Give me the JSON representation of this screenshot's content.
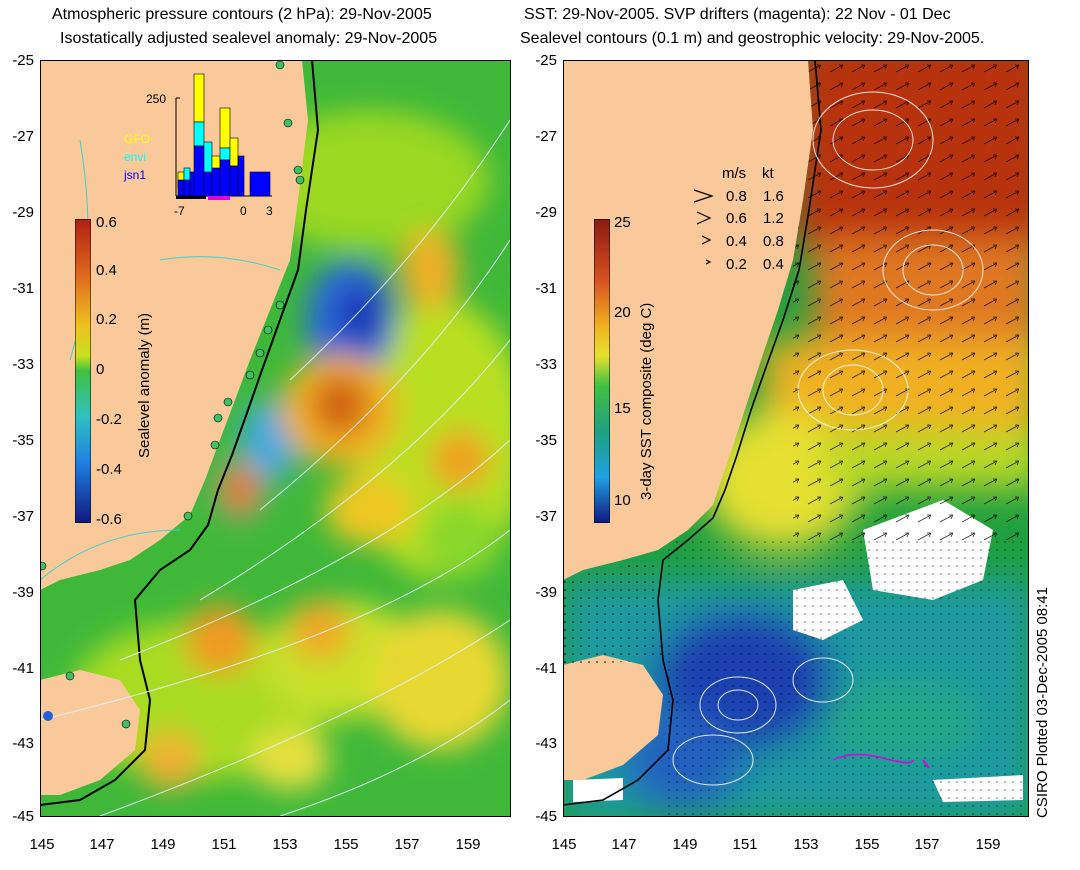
{
  "left_panel": {
    "title_line1": "Atmospheric pressure contours (2 hPa): 29-Nov-2005",
    "title_line2": "Isostatically adjusted sealevel anomaly: 29-Nov-2005",
    "colorbar": {
      "label": "Sealevel anomaly (m)",
      "ticks": [
        "0.6",
        "0.4",
        "0.2",
        "0",
        "-0.2",
        "-0.4",
        "-0.6"
      ]
    },
    "histogram": {
      "ymax_label": "250",
      "legend": [
        {
          "name": "GFO",
          "color": "#ffff00"
        },
        {
          "name": "envi",
          "color": "#00ffff"
        },
        {
          "name": "jsn1",
          "color": "#0000ff"
        }
      ],
      "x_ticks": [
        "-7",
        "0",
        "3"
      ]
    }
  },
  "right_panel": {
    "title_line1": "SST: 29-Nov-2005. SVP drifters (magenta): 22 Nov - 01 Dec",
    "title_line2": "Sealevel contours (0.1 m) and geostrophic velocity: 29-Nov-2005.",
    "colorbar": {
      "label": "3-day SST composite (deg C)",
      "ticks": [
        "25",
        "20",
        "15",
        "10"
      ]
    },
    "velocity_legend": {
      "header_ms": "m/s",
      "header_kt": "kt",
      "rows": [
        {
          "ms": "0.8",
          "kt": "1.6"
        },
        {
          "ms": "0.6",
          "kt": "1.2"
        },
        {
          "ms": "0.4",
          "kt": "0.8"
        },
        {
          "ms": "0.2",
          "kt": "0.4"
        }
      ]
    }
  },
  "axes": {
    "lat_ticks": [
      "-25",
      "-27",
      "-29",
      "-31",
      "-33",
      "-35",
      "-37",
      "-39",
      "-41",
      "-43",
      "-45"
    ],
    "lon_ticks": [
      "145",
      "147",
      "149",
      "151",
      "153",
      "155",
      "157",
      "159"
    ]
  },
  "credit": "CSIRO Plotted 03-Dec-2005 08:41",
  "colors": {
    "land": "#f9c99a",
    "sla_high": "#d9531c",
    "sla_low": "#1f4fd8",
    "sst_warm": "#b52a12",
    "sst_cold": "#1a3aa8",
    "drifter": "#e000e0"
  }
}
